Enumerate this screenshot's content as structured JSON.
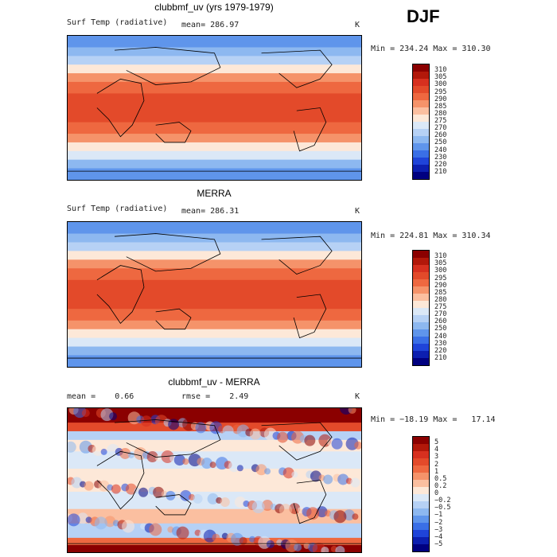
{
  "season": "DJF",
  "panels": [
    {
      "title": "clubbmf_uv (yrs 1979-1979)",
      "left_label": "Surf Temp (radiative)",
      "mid_label": "mean= 286.97",
      "unit": "K",
      "minmax": "Min = 234.24 Max = 310.30",
      "colorbar_labels": [
        "310",
        "305",
        "300",
        "295",
        "290",
        "285",
        "280",
        "275",
        "270",
        "260",
        "250",
        "240",
        "230",
        "220",
        "210"
      ],
      "colors": [
        "#8b0000",
        "#b2180a",
        "#d7301f",
        "#e34a2a",
        "#ee6840",
        "#f5936a",
        "#fbbfa0",
        "#fde8d8",
        "#dbe8f7",
        "#b6d1f5",
        "#8db8f0",
        "#5f95eb",
        "#3a6fe6",
        "#1f44d9",
        "#0c1fb0",
        "#000080"
      ]
    },
    {
      "title": "MERRA",
      "left_label": "Surf Temp (radiative)",
      "mid_label": "mean= 286.31",
      "unit": "K",
      "minmax": "Min = 224.81 Max = 310.34",
      "colorbar_labels": [
        "310",
        "305",
        "300",
        "295",
        "290",
        "285",
        "280",
        "275",
        "270",
        "260",
        "250",
        "240",
        "230",
        "220",
        "210"
      ],
      "colors": [
        "#8b0000",
        "#b2180a",
        "#d7301f",
        "#e34a2a",
        "#ee6840",
        "#f5936a",
        "#fbbfa0",
        "#fde8d8",
        "#dbe8f7",
        "#b6d1f5",
        "#8db8f0",
        "#5f95eb",
        "#3a6fe6",
        "#1f44d9",
        "#0c1fb0",
        "#000080"
      ]
    },
    {
      "title": "clubbmf_uv - MERRA",
      "left_label": "mean =    0.66",
      "mid_label": "rmse =    2.49",
      "unit": "K",
      "minmax": "Min = −18.19 Max =   17.14",
      "colorbar_labels": [
        "5",
        "4",
        "3",
        "2",
        "1",
        "0.5",
        "0.2",
        "0",
        "−0.2",
        "−0.5",
        "−1",
        "−2",
        "−3",
        "−4",
        "−5"
      ],
      "colors": [
        "#8b0000",
        "#b2180a",
        "#d7301f",
        "#e34a2a",
        "#ee6840",
        "#f5936a",
        "#fbbfa0",
        "#fde8d8",
        "#dbe8f7",
        "#b6d1f5",
        "#8db8f0",
        "#5f95eb",
        "#3a6fe6",
        "#1f44d9",
        "#0c1fb0",
        "#000080"
      ]
    }
  ],
  "chart_data": [
    {
      "type": "heatmap",
      "title": "clubbmf_uv (yrs 1979-1979)",
      "variable": "Surf Temp (radiative)",
      "units": "K",
      "mean": 286.97,
      "min": 234.24,
      "max": 310.3,
      "levels": [
        210,
        220,
        230,
        240,
        250,
        260,
        270,
        275,
        280,
        285,
        290,
        295,
        300,
        305,
        310
      ]
    },
    {
      "type": "heatmap",
      "title": "MERRA",
      "variable": "Surf Temp (radiative)",
      "units": "K",
      "mean": 286.31,
      "min": 224.81,
      "max": 310.34,
      "levels": [
        210,
        220,
        230,
        240,
        250,
        260,
        270,
        275,
        280,
        285,
        290,
        295,
        300,
        305,
        310
      ]
    },
    {
      "type": "heatmap",
      "title": "clubbmf_uv - MERRA",
      "units": "K",
      "mean": 0.66,
      "rmse": 2.49,
      "min": -18.19,
      "max": 17.14,
      "levels": [
        -5,
        -4,
        -3,
        -2,
        -1,
        -0.5,
        -0.2,
        0,
        0.2,
        0.5,
        1,
        2,
        3,
        4,
        5
      ]
    }
  ]
}
